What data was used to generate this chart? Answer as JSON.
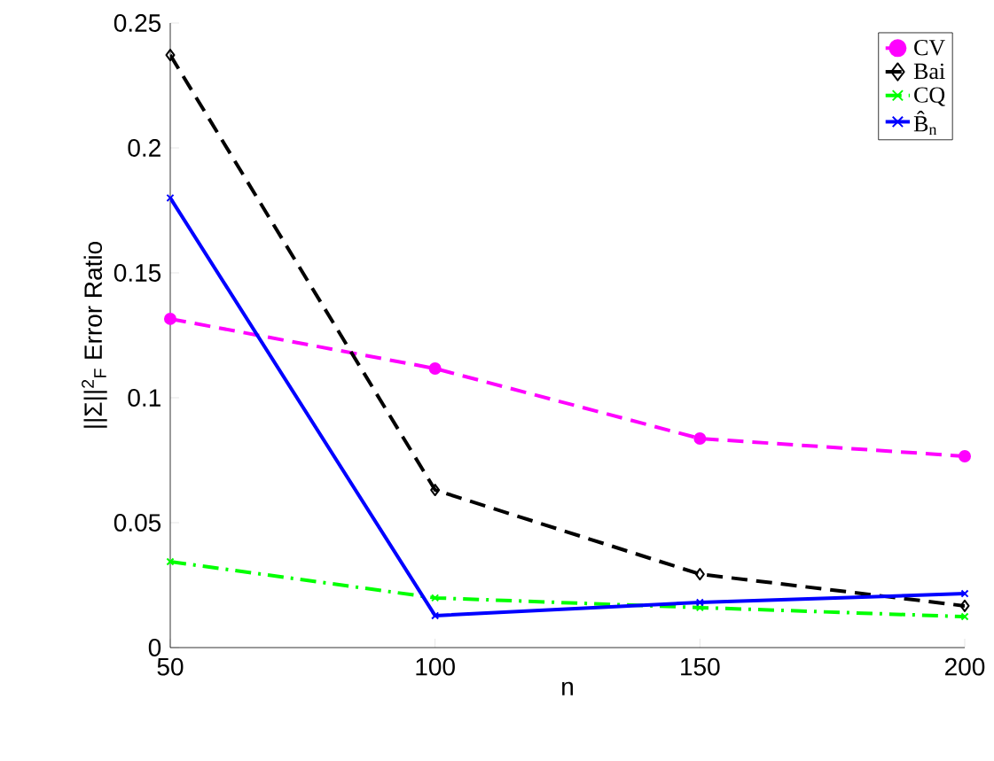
{
  "chart_data": {
    "type": "line",
    "xlabel": "n",
    "ylabel": "||Σ||$^{2}$$_{F}$   Error Ratio",
    "x": [
      50,
      100,
      150,
      200
    ],
    "series": [
      {
        "name": "CV",
        "color": "#ff00ff",
        "values": [
          0.1316,
          0.1117,
          0.0837,
          0.0766
        ],
        "marker": "circle",
        "line_style": "dashed"
      },
      {
        "name": "Bai",
        "color": "#000000",
        "values": [
          0.2372,
          0.0631,
          0.0294,
          0.0167
        ],
        "marker": "diamond",
        "line_style": "dashed"
      },
      {
        "name": "CQ",
        "color": "#00ff00",
        "values": [
          0.0344,
          0.0199,
          0.016,
          0.0124
        ],
        "marker": "cross",
        "line_style": "dashdot"
      },
      {
        "name": "B̂$_{n}$",
        "color": "#0000ff",
        "values": [
          0.18,
          0.0128,
          0.0181,
          0.0216
        ],
        "marker": "cross",
        "line_style": "solid"
      }
    ],
    "xlim": [
      50,
      200
    ],
    "ylim": [
      0,
      0.25
    ],
    "xticks": [
      50,
      100,
      150,
      200
    ],
    "yticks": [
      0,
      0.05,
      0.1,
      0.15,
      0.2,
      0.25
    ],
    "legend": "top right",
    "grid": false
  }
}
